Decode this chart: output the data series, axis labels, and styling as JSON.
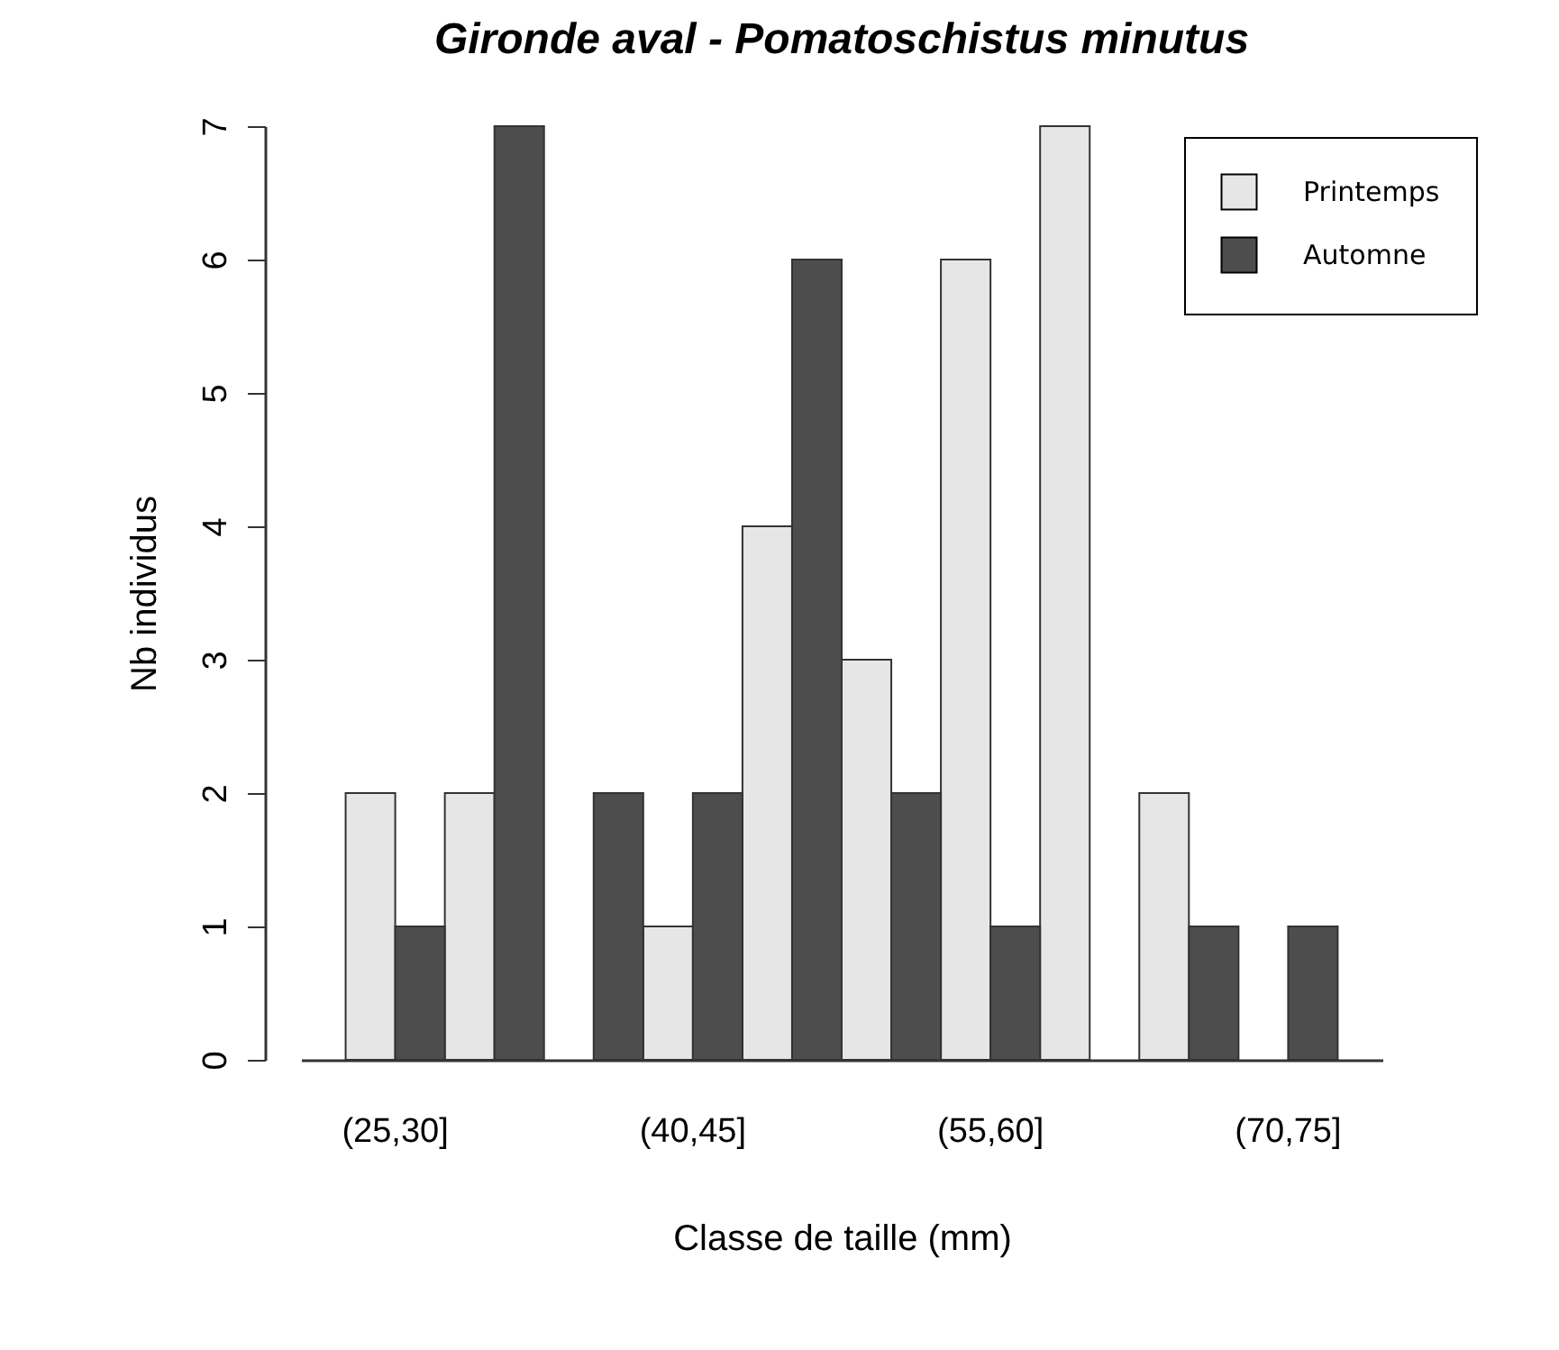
{
  "chart_data": {
    "type": "bar",
    "title": "Gironde aval - Pomatoschistus minutus",
    "xlabel": "Classe de taille (mm)",
    "ylabel": "Nb individus",
    "categories": [
      "(25,30]",
      null,
      null,
      "(40,45]",
      null,
      null,
      "(55,60]",
      null,
      null,
      "(70,75]"
    ],
    "series": [
      {
        "name": "Printemps",
        "color": "#e6e6e6",
        "values": [
          2,
          2,
          0,
          1,
          4,
          3,
          6,
          7,
          2,
          0
        ]
      },
      {
        "name": "Automne",
        "color": "#4d4d4d",
        "values": [
          1,
          7,
          2,
          2,
          6,
          2,
          1,
          0,
          1,
          1
        ]
      }
    ],
    "ylim": [
      0,
      7
    ],
    "yticks": [
      0,
      1,
      2,
      3,
      4,
      5,
      6,
      7
    ],
    "grid": false,
    "legend": "top right"
  }
}
